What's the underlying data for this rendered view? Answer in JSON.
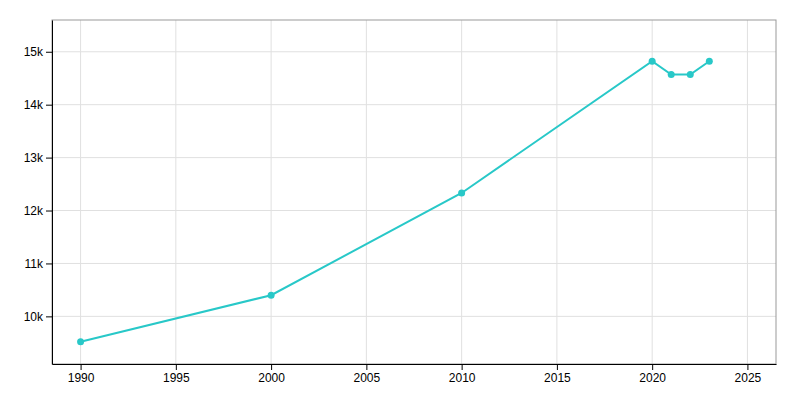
{
  "chart_data": {
    "type": "line",
    "x": [
      1990,
      2000,
      2010,
      2020,
      2021,
      2022,
      2023
    ],
    "values": [
      9520,
      10400,
      12332,
      14820,
      14570,
      14570,
      14820
    ],
    "color": "#28c8c8",
    "marker": "circle",
    "xlim": [
      1988.5,
      2026.5
    ],
    "ylim": [
      9100,
      15600
    ],
    "xticks": [
      1990,
      1995,
      2000,
      2005,
      2010,
      2015,
      2020,
      2025
    ],
    "yticks": [
      {
        "value": 10000,
        "label": "10k"
      },
      {
        "value": 11000,
        "label": "11k"
      },
      {
        "value": 12000,
        "label": "12k"
      },
      {
        "value": 13000,
        "label": "13k"
      },
      {
        "value": 14000,
        "label": "14k"
      },
      {
        "value": 15000,
        "label": "15k"
      }
    ],
    "grid": true
  }
}
